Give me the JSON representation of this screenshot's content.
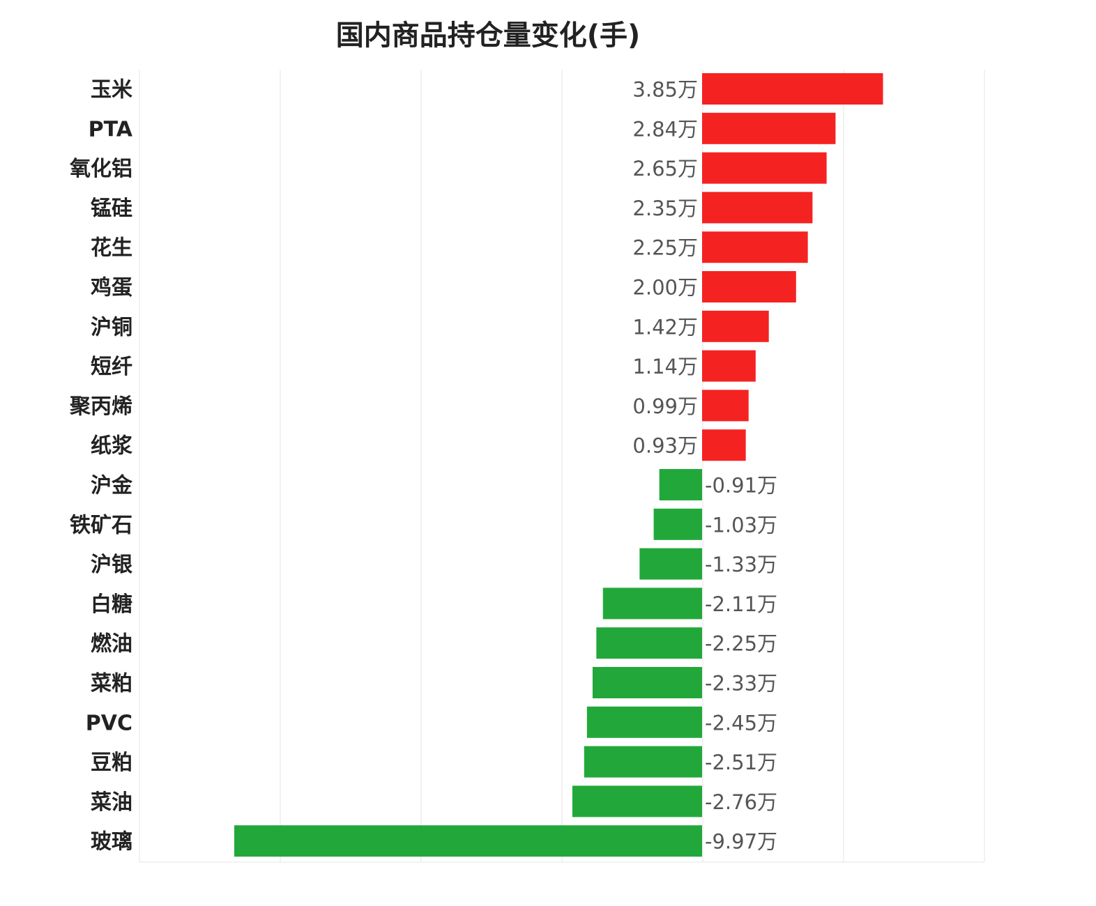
{
  "chart_data": {
    "type": "bar",
    "orientation": "horizontal",
    "title": "国内商品持仓量变化(手)",
    "xlabel": "",
    "ylabel": "",
    "unit_suffix": "万",
    "xlim": [
      -4,
      2
    ],
    "grid": true,
    "legend": "none",
    "categories": [
      "玉米",
      "PTA",
      "氧化铝",
      "锰硅",
      "花生",
      "鸡蛋",
      "沪铜",
      "短纤",
      "聚丙烯",
      "纸浆",
      "沪金",
      "铁矿石",
      "沪银",
      "白糖",
      "燃油",
      "菜粕",
      "PVC",
      "豆粕",
      "菜油",
      "玻璃"
    ],
    "values": [
      3.85,
      2.84,
      2.65,
      2.35,
      2.25,
      2.0,
      1.42,
      1.14,
      0.99,
      0.93,
      -0.91,
      -1.03,
      -1.33,
      -2.11,
      -2.25,
      -2.33,
      -2.45,
      -2.51,
      -2.76,
      -9.97
    ],
    "value_labels": [
      "3.85万",
      "2.84万",
      "2.65万",
      "2.35万",
      "2.25万",
      "2.00万",
      "1.42万",
      "1.14万",
      "0.99万",
      "0.93万",
      "-0.91万",
      "-1.03万",
      "-1.33万",
      "-2.11万",
      "-2.25万",
      "-2.33万",
      "-2.45万",
      "-2.51万",
      "-2.76万",
      "-9.97万"
    ],
    "colors": {
      "positive": "#f52222",
      "negative": "#22a83a",
      "grid": "#e6e6e6"
    }
  }
}
